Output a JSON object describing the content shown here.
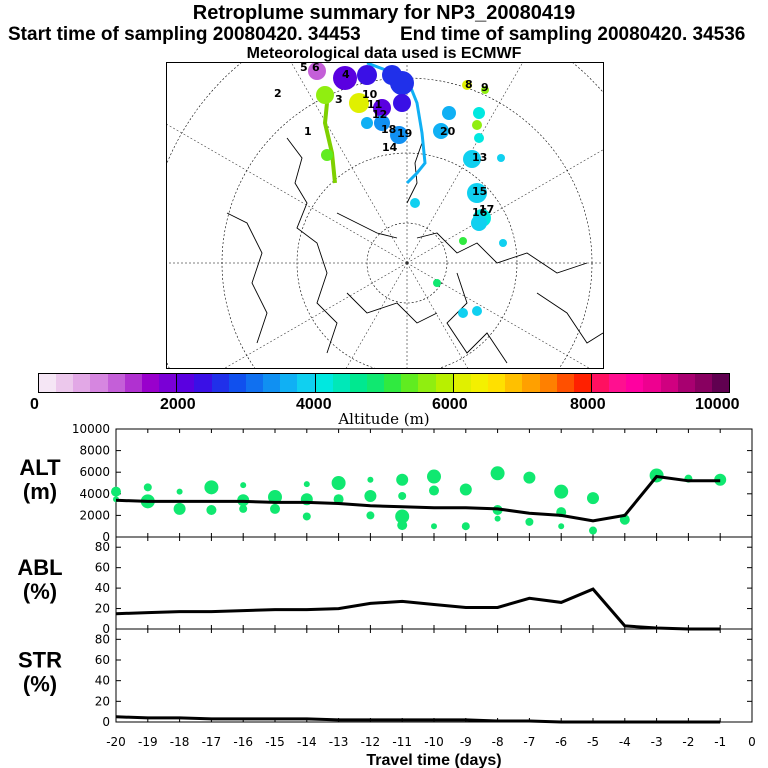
{
  "header": {
    "title": "Retroplume summary for NP3_20080419",
    "start": "Start time of sampling 20080420. 34453",
    "end": "End time of sampling 20080420. 34536",
    "meteo": "Meteorological data used is ECMWF"
  },
  "colorbar": {
    "ticks": [
      "0",
      "2000",
      "4000",
      "6000",
      "8000",
      "10000"
    ],
    "label": "Altitude (m)",
    "colors": [
      "#f5e6f5",
      "#ecc8ec",
      "#e2a8e6",
      "#d686e0",
      "#c45fd8",
      "#b031d0",
      "#9900cc",
      "#7a00d6",
      "#5a00e0",
      "#3a10e6",
      "#2030ea",
      "#1050ee",
      "#1070f0",
      "#1090f2",
      "#10b0f4",
      "#10d0f0",
      "#00e8e0",
      "#00e8b8",
      "#00e890",
      "#10e870",
      "#30ea40",
      "#60ec20",
      "#90ee10",
      "#b8f000",
      "#e0f000",
      "#f4f000",
      "#ffe000",
      "#ffc000",
      "#ffa000",
      "#ff8000",
      "#ff5000",
      "#ff2000",
      "#ff1060",
      "#ff1090",
      "#ff00a0",
      "#ee0090",
      "#d00080",
      "#a80070",
      "#880060",
      "#600050"
    ]
  },
  "map_labels": [
    "5",
    "6",
    "4",
    "2",
    "1",
    "3",
    "10",
    "11",
    "12",
    "18",
    "19",
    "20",
    "13",
    "14",
    "15",
    "16",
    "17",
    "8",
    "9"
  ],
  "chart_data": [
    {
      "type": "line",
      "name": "ALT",
      "ylabel": "ALT\n(m)",
      "ylim": [
        0,
        10000
      ],
      "yticks": [
        "0",
        "2000",
        "4000",
        "6000",
        "8000",
        "10000"
      ],
      "x": [
        -20,
        -19,
        -18,
        -17,
        -16,
        -15,
        -14,
        -13,
        -12,
        -11,
        -10,
        -9,
        -8,
        -7,
        -6,
        -5,
        -4,
        -3,
        -2,
        -1
      ],
      "values": [
        3400,
        3300,
        3300,
        3300,
        3300,
        3200,
        3200,
        3100,
        2900,
        2800,
        2700,
        2700,
        2600,
        2200,
        2000,
        1500,
        2000,
        5600,
        5200,
        5200
      ],
      "scatter": [
        [
          -20,
          3500
        ],
        [
          -20,
          4200
        ],
        [
          -19,
          3300
        ],
        [
          -19,
          4600
        ],
        [
          -18,
          2600
        ],
        [
          -18,
          4200
        ],
        [
          -17,
          2500
        ],
        [
          -17,
          4600
        ],
        [
          -16,
          2600
        ],
        [
          -16,
          3400
        ],
        [
          -16,
          4800
        ],
        [
          -15,
          2600
        ],
        [
          -15,
          3700
        ],
        [
          -14,
          1900
        ],
        [
          -14,
          3500
        ],
        [
          -14,
          4900
        ],
        [
          -13,
          3500
        ],
        [
          -13,
          5000
        ],
        [
          -12,
          2000
        ],
        [
          -12,
          3800
        ],
        [
          -12,
          5300
        ],
        [
          -11,
          1100
        ],
        [
          -11,
          1900
        ],
        [
          -11,
          3800
        ],
        [
          -11,
          5300
        ],
        [
          -10,
          1000
        ],
        [
          -10,
          4300
        ],
        [
          -10,
          5600
        ],
        [
          -9,
          1000
        ],
        [
          -9,
          4400
        ],
        [
          -8,
          1700
        ],
        [
          -8,
          2500
        ],
        [
          -8,
          5900
        ],
        [
          -7,
          1400
        ],
        [
          -7,
          5500
        ],
        [
          -6,
          1000
        ],
        [
          -6,
          2300
        ],
        [
          -6,
          4200
        ],
        [
          -5,
          600
        ],
        [
          -5,
          3600
        ],
        [
          -4,
          1900
        ],
        [
          -4,
          1600
        ],
        [
          -3,
          5700
        ],
        [
          -2,
          5400
        ],
        [
          -1,
          5300
        ]
      ]
    },
    {
      "type": "line",
      "name": "ABL",
      "ylabel": "ABL\n(%)",
      "ylim": [
        0,
        90
      ],
      "yticks": [
        "0",
        "20",
        "40",
        "60",
        "80"
      ],
      "x": [
        -20,
        -19,
        -18,
        -17,
        -16,
        -15,
        -14,
        -13,
        -12,
        -11,
        -10,
        -9,
        -8,
        -7,
        -6,
        -5,
        -4,
        -3,
        -2,
        -1
      ],
      "values": [
        15,
        16,
        17,
        17,
        18,
        19,
        19,
        20,
        25,
        27,
        24,
        21,
        21,
        30,
        26,
        39,
        3,
        1,
        0,
        0
      ]
    },
    {
      "type": "line",
      "name": "STR",
      "ylabel": "STR\n(%)",
      "ylim": [
        0,
        90
      ],
      "yticks": [
        "0",
        "20",
        "40",
        "60",
        "80"
      ],
      "x": [
        -20,
        -19,
        -18,
        -17,
        -16,
        -15,
        -14,
        -13,
        -12,
        -11,
        -10,
        -9,
        -8,
        -7,
        -6,
        -5,
        -4,
        -3,
        -2,
        -1
      ],
      "values": [
        5,
        4,
        4,
        3,
        3,
        3,
        3,
        2,
        2,
        2,
        2,
        2,
        1,
        1,
        0,
        0,
        0,
        0,
        0,
        0
      ]
    }
  ],
  "xaxis": {
    "ticks": [
      "-20",
      "-19",
      "-18",
      "-17",
      "-16",
      "-15",
      "-14",
      "-13",
      "-12",
      "-11",
      "-10",
      "-9",
      "-8",
      "-7",
      "-6",
      "-5",
      "-4",
      "-3",
      "-2",
      "-1",
      "0"
    ],
    "label": "Travel time (days)"
  }
}
